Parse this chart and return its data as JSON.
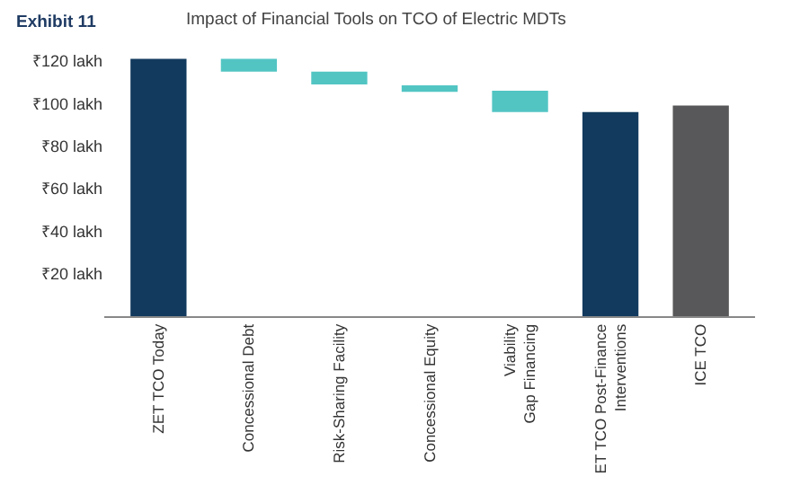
{
  "chart_data": {
    "type": "bar",
    "title": "Impact of Financial Tools on TCO of Electric MDTs",
    "annotations": [
      "Exhibit 11"
    ],
    "categories": [
      "ZET TCO Today",
      "Concessional Debt",
      "Risk-Sharing Facility",
      "Concessional Equity",
      "Viability Gap Financing",
      "ET TCO Post-Finance Interventions",
      "ICE TCO"
    ],
    "values": [
      121,
      6,
      6,
      3,
      10,
      96,
      99
    ],
    "base": [
      0,
      115,
      109,
      105.5,
      96,
      0,
      0
    ],
    "colors": [
      "#123a5e",
      "#52c5c3",
      "#52c5c3",
      "#52c5c3",
      "#52c5c3",
      "#123a5e",
      "#58585a"
    ],
    "ylim": [
      0,
      125
    ],
    "yticks": [
      {
        "value": 20,
        "label": "₹20 lakh"
      },
      {
        "value": 40,
        "label": "₹40 lakh"
      },
      {
        "value": 60,
        "label": "₹60 lakh"
      },
      {
        "value": 80,
        "label": "₹80 lakh"
      },
      {
        "value": 100,
        "label": "₹100 lakh"
      },
      {
        "value": 120,
        "label": "₹120 lakh"
      }
    ],
    "grid": false,
    "legend": false
  }
}
